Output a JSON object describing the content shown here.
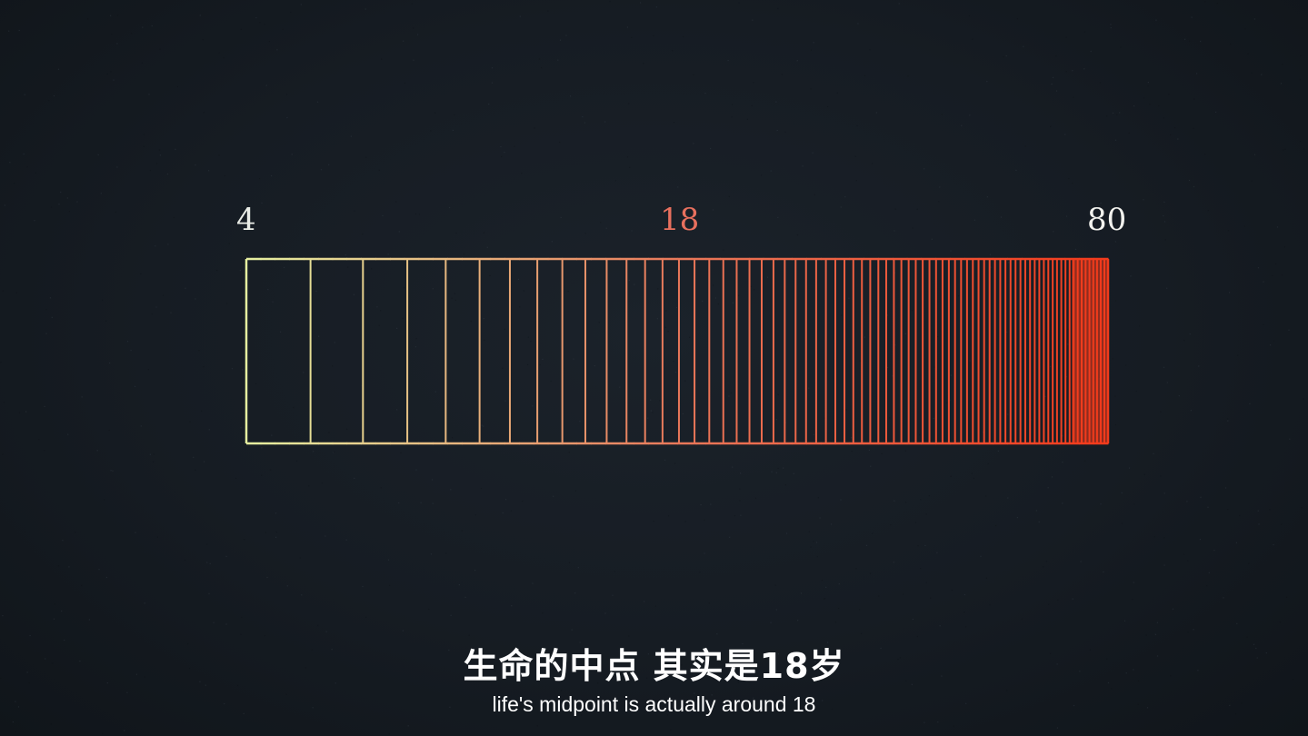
{
  "labels": {
    "start": "4",
    "midpoint": "18",
    "end": "80"
  },
  "subtitles": {
    "chinese": "生命的中点 其实是18岁",
    "english": "life's midpoint is actually around 18"
  },
  "bar": {
    "start_age": 4,
    "end_age": 80,
    "start_color": "#e6f0a0",
    "mid_color": "#e9785a",
    "end_color": "#f23a1c"
  },
  "colors": {
    "background": "#161c23",
    "label_start": "#e9ece6",
    "label_midpoint": "#e8705e",
    "label_end": "#f2f2ee",
    "subtitle": "#ffffff"
  }
}
